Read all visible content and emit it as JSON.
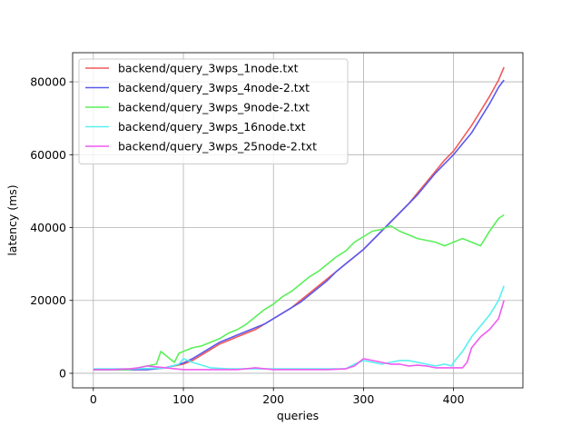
{
  "chart_data": {
    "type": "line",
    "title": "",
    "xlabel": "queries",
    "ylabel": "latency (ms)",
    "xlim": [
      -23,
      477
    ],
    "ylim": [
      -4000,
      88000
    ],
    "xticks": [
      0,
      100,
      200,
      300,
      400
    ],
    "xtick_labels": [
      "0",
      "100",
      "200",
      "300",
      "400"
    ],
    "yticks": [
      0,
      20000,
      40000,
      60000,
      80000
    ],
    "ytick_labels": [
      "0",
      "20000",
      "40000",
      "60000",
      "80000"
    ],
    "grid": true,
    "legend_position": "top-left",
    "series": [
      {
        "name": "backend/query_3wps_1node.txt",
        "color": "#f05a5a",
        "x": [
          0,
          20,
          40,
          60,
          80,
          100,
          110,
          120,
          130,
          140,
          150,
          160,
          170,
          180,
          190,
          200,
          210,
          220,
          230,
          240,
          250,
          260,
          270,
          280,
          290,
          300,
          310,
          320,
          330,
          340,
          350,
          360,
          370,
          380,
          390,
          400,
          410,
          420,
          430,
          440,
          450,
          456
        ],
        "y": [
          1000,
          1000,
          1000,
          1000,
          1500,
          2500,
          3500,
          5000,
          6500,
          8000,
          9000,
          10000,
          11000,
          12000,
          13500,
          15000,
          16500,
          18000,
          20000,
          22000,
          24000,
          26000,
          28000,
          30000,
          32000,
          34000,
          36500,
          39000,
          41500,
          44000,
          46500,
          49500,
          52500,
          55500,
          58500,
          61000,
          64500,
          68000,
          72000,
          76000,
          80500,
          84000
        ]
      },
      {
        "name": "backend/query_3wps_4node-2.txt",
        "color": "#5a5af0",
        "x": [
          0,
          20,
          40,
          60,
          80,
          100,
          110,
          120,
          130,
          140,
          150,
          160,
          170,
          180,
          190,
          200,
          210,
          220,
          230,
          240,
          250,
          260,
          270,
          280,
          290,
          300,
          310,
          320,
          330,
          340,
          350,
          360,
          370,
          380,
          390,
          400,
          410,
          420,
          430,
          440,
          450,
          456
        ],
        "y": [
          1000,
          1000,
          1000,
          1000,
          1500,
          2800,
          4000,
          5500,
          7000,
          8500,
          9500,
          10500,
          11500,
          12500,
          13500,
          15000,
          16500,
          18000,
          19500,
          21500,
          23500,
          25500,
          28000,
          30000,
          32000,
          34000,
          36500,
          39000,
          41500,
          44000,
          46500,
          49000,
          52000,
          55000,
          57500,
          60000,
          63000,
          66000,
          70000,
          74000,
          78500,
          80500
        ]
      },
      {
        "name": "backend/query_3wps_9node-2.txt",
        "color": "#5af05a",
        "x": [
          0,
          20,
          40,
          50,
          60,
          70,
          75,
          85,
          90,
          95,
          100,
          110,
          120,
          130,
          140,
          150,
          160,
          170,
          180,
          190,
          200,
          210,
          220,
          230,
          240,
          250,
          260,
          270,
          280,
          290,
          300,
          310,
          320,
          330,
          340,
          350,
          360,
          370,
          380,
          390,
          400,
          410,
          420,
          430,
          440,
          450,
          456
        ],
        "y": [
          1000,
          1000,
          1000,
          1500,
          2000,
          2500,
          6000,
          4000,
          3000,
          5500,
          6000,
          7000,
          7500,
          8500,
          9500,
          11000,
          12000,
          13500,
          15500,
          17500,
          19000,
          21000,
          22500,
          24500,
          26500,
          28000,
          30000,
          32000,
          33500,
          36000,
          37500,
          39000,
          39500,
          40500,
          39000,
          38000,
          37000,
          36500,
          36000,
          35000,
          36000,
          37000,
          36000,
          35000,
          39000,
          42500,
          43500
        ]
      },
      {
        "name": "backend/query_3wps_16node.txt",
        "color": "#5af0f0",
        "x": [
          0,
          40,
          60,
          80,
          95,
          100,
          110,
          130,
          150,
          200,
          250,
          280,
          290,
          300,
          310,
          320,
          330,
          340,
          350,
          360,
          370,
          380,
          390,
          398,
          400,
          410,
          420,
          430,
          440,
          450,
          456
        ],
        "y": [
          1200,
          1200,
          1300,
          1400,
          2500,
          4000,
          3000,
          1500,
          1200,
          1200,
          1200,
          1200,
          2500,
          3500,
          3000,
          2500,
          3000,
          3500,
          3500,
          3000,
          2500,
          2000,
          2500,
          2000,
          3000,
          6000,
          10000,
          13000,
          16000,
          20000,
          24000
        ]
      },
      {
        "name": "backend/query_3wps_25node-2.txt",
        "color": "#f05af0",
        "x": [
          0,
          20,
          40,
          50,
          60,
          80,
          100,
          120,
          140,
          160,
          180,
          200,
          220,
          240,
          260,
          280,
          290,
          300,
          310,
          320,
          330,
          340,
          350,
          360,
          370,
          380,
          390,
          400,
          410,
          415,
          420,
          430,
          440,
          450,
          456
        ],
        "y": [
          1000,
          1000,
          1200,
          1500,
          2000,
          1500,
          1000,
          1000,
          1000,
          1000,
          1500,
          1000,
          1000,
          1000,
          1000,
          1200,
          2000,
          4000,
          3500,
          3000,
          2500,
          2500,
          2000,
          2200,
          2000,
          1500,
          1500,
          1500,
          1500,
          3000,
          7000,
          10000,
          12000,
          15000,
          20000
        ]
      }
    ]
  }
}
